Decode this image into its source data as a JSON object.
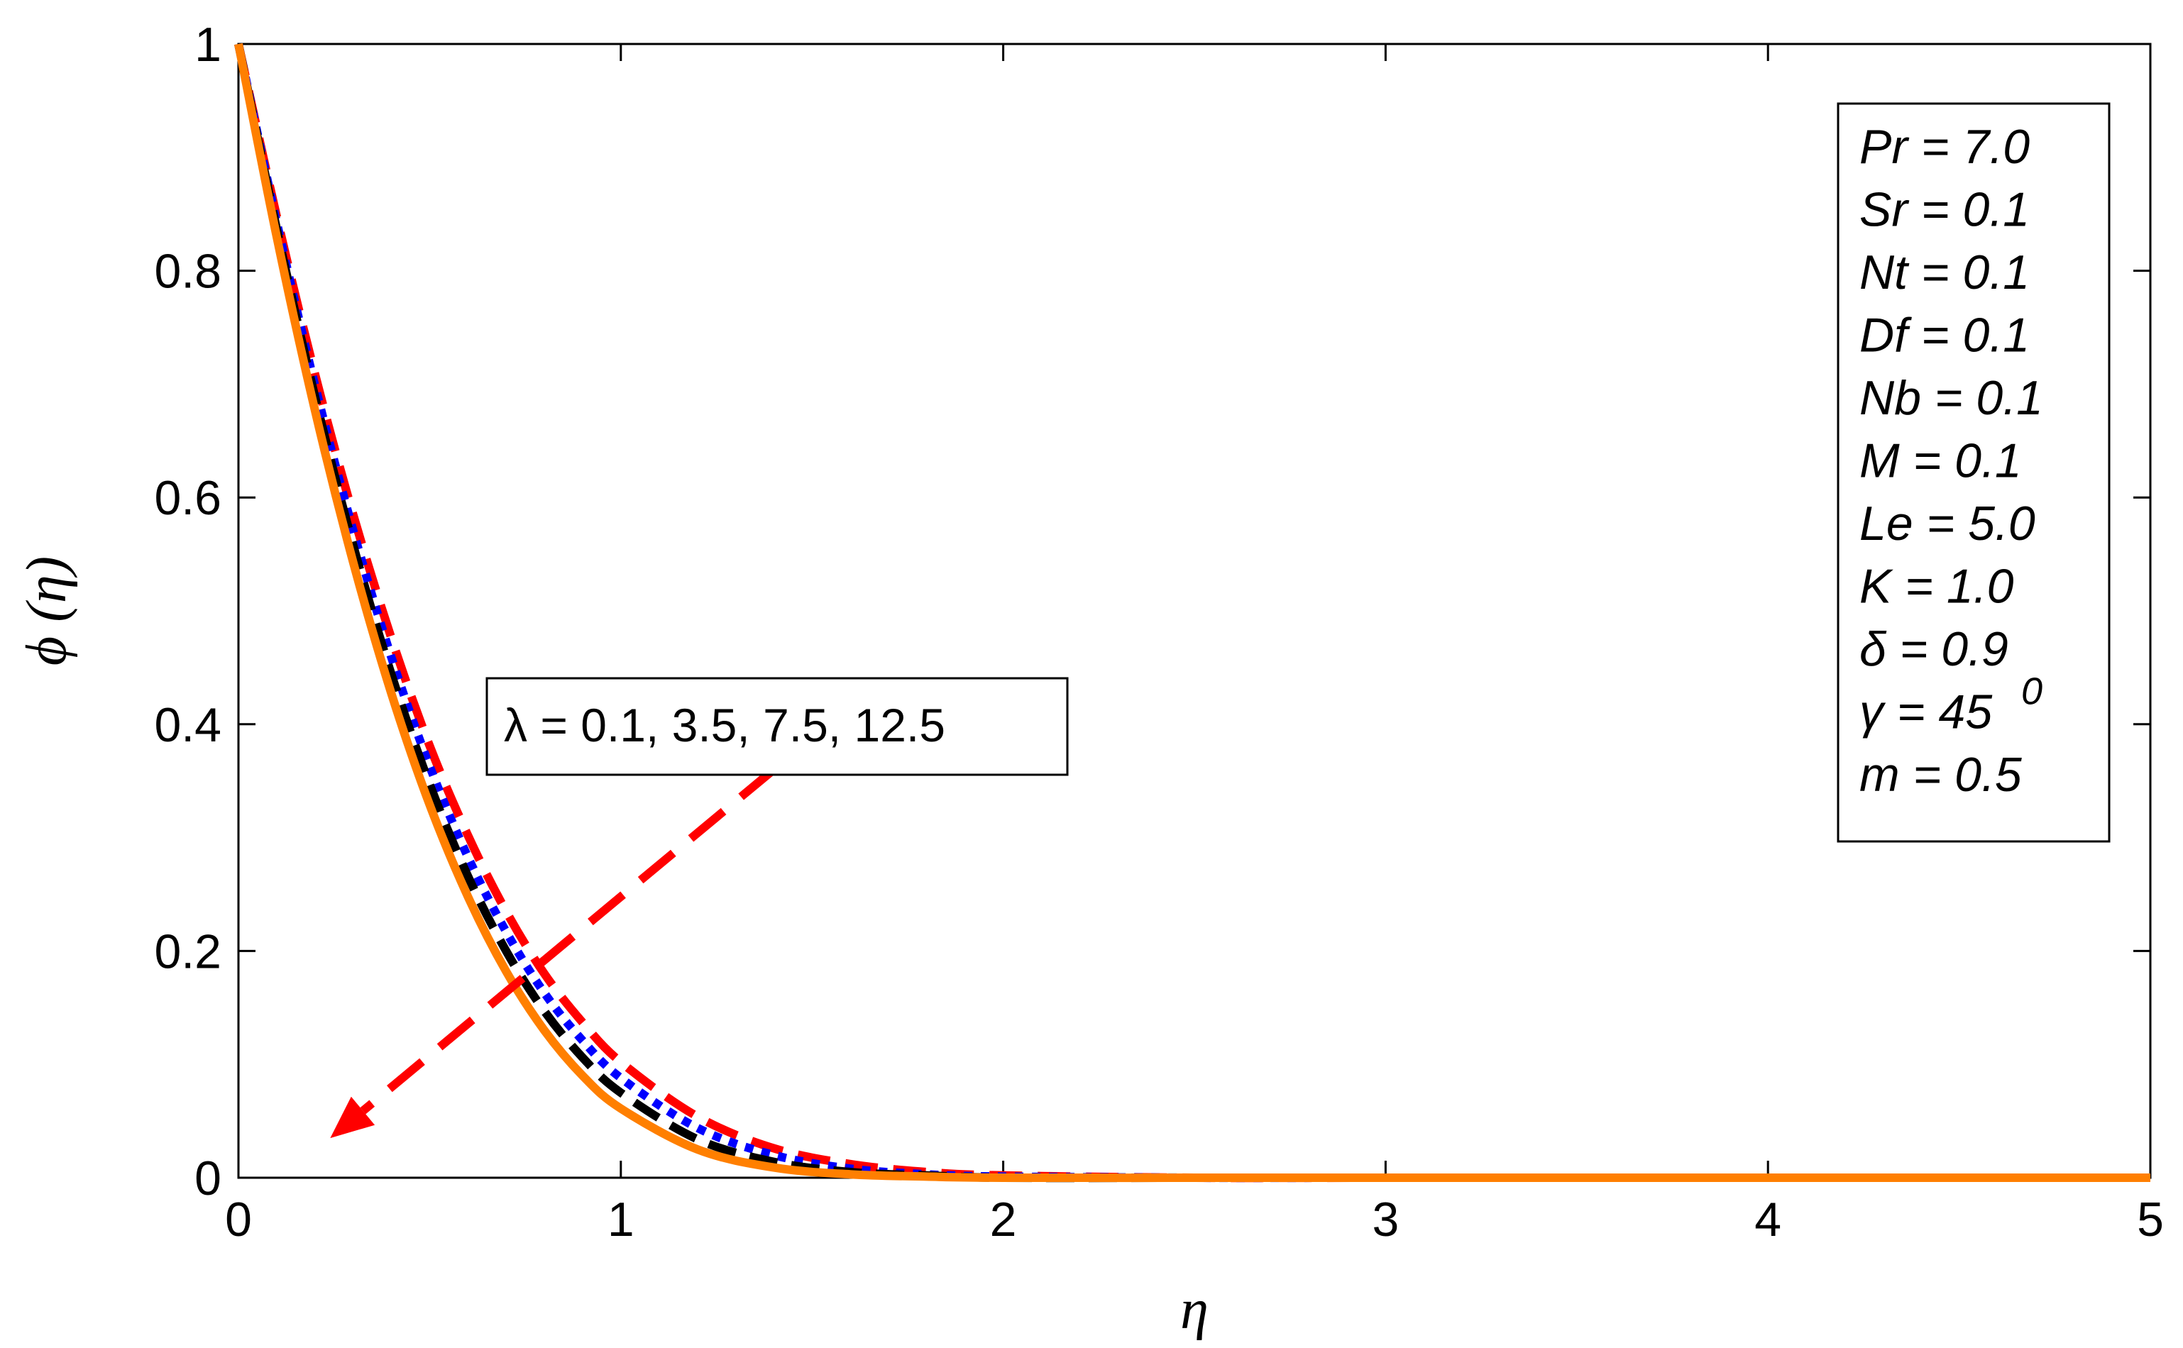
{
  "chart_data": {
    "type": "line",
    "xlabel": "η",
    "ylabel": "ϕ (η)",
    "xlim": [
      0,
      5
    ],
    "ylim": [
      0,
      1
    ],
    "x_ticks": [
      "0",
      "1",
      "2",
      "3",
      "4",
      "5"
    ],
    "y_ticks": [
      "0",
      "0.2",
      "0.4",
      "0.6",
      "0.8",
      "1"
    ],
    "grid": false,
    "x": [
      0,
      0.1,
      0.2,
      0.3,
      0.4,
      0.5,
      0.6,
      0.7,
      0.8,
      0.9,
      1.0,
      1.2,
      1.4,
      1.6,
      1.8,
      2.0,
      2.5,
      3.0,
      4.0,
      5.0
    ],
    "series": [
      {
        "style": "red-dashed",
        "color": "#ff0000",
        "values": [
          1.0,
          0.848,
          0.709,
          0.585,
          0.476,
          0.381,
          0.302,
          0.235,
          0.18,
          0.137,
          0.102,
          0.054,
          0.026,
          0.012,
          0.005,
          0.002,
          0.0,
          0.0,
          0.0,
          0.0
        ]
      },
      {
        "style": "blue-dotted",
        "color": "#0000ff",
        "values": [
          1.0,
          0.843,
          0.699,
          0.571,
          0.459,
          0.363,
          0.283,
          0.217,
          0.163,
          0.121,
          0.088,
          0.044,
          0.02,
          0.008,
          0.003,
          0.001,
          0.0,
          0.0,
          0.0,
          0.0
        ]
      },
      {
        "style": "black-dashed",
        "color": "#000000",
        "values": [
          1.0,
          0.837,
          0.689,
          0.558,
          0.444,
          0.347,
          0.266,
          0.2,
          0.147,
          0.106,
          0.075,
          0.034,
          0.014,
          0.005,
          0.002,
          0.0,
          0.0,
          0.0,
          0.0,
          0.0
        ]
      },
      {
        "style": "orange-solid",
        "color": "#ff7f00",
        "values": [
          1.0,
          0.83,
          0.677,
          0.543,
          0.427,
          0.329,
          0.248,
          0.182,
          0.13,
          0.09,
          0.061,
          0.025,
          0.009,
          0.003,
          0.001,
          0.0,
          0.0,
          0.0,
          0.0,
          0.0
        ]
      }
    ],
    "annotation": {
      "label": "λ = 0.1, 3.5, 7.5, 12.5",
      "arrow_color": "#ff0000",
      "arrow_from": [
        1.4,
        0.36
      ],
      "arrow_to": [
        0.24,
        0.035
      ]
    },
    "parameter_box": {
      "position": "top-right",
      "lines": [
        "Pr = 7.0",
        "Sr = 0.1",
        "Nt = 0.1",
        "Df = 0.1",
        "Nb = 0.1",
        "M = 0.1",
        "Le = 5.0",
        "K = 1.0",
        "δ = 0.9",
        "γ = 45",
        "m = 0.5"
      ],
      "superscript_on_gamma": "0"
    }
  }
}
